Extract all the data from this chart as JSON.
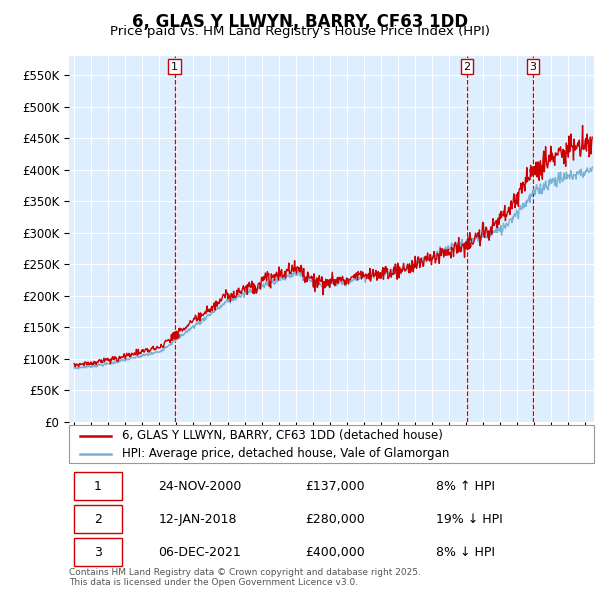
{
  "title": "6, GLAS Y LLWYN, BARRY, CF63 1DD",
  "subtitle": "Price paid vs. HM Land Registry's House Price Index (HPI)",
  "ylim": [
    0,
    580000
  ],
  "yticks": [
    0,
    50000,
    100000,
    150000,
    200000,
    250000,
    300000,
    350000,
    400000,
    450000,
    500000,
    550000
  ],
  "xlim_start": 1994.7,
  "xlim_end": 2025.5,
  "plot_bg_color": "#ddeeff",
  "grid_color": "#ffffff",
  "hpi_color": "#7ab0d4",
  "price_color": "#cc0000",
  "dashed_line_color": "#cc0000",
  "sale_dates": [
    2000.9,
    2018.04,
    2021.92
  ],
  "sale_prices": [
    137000,
    280000,
    400000
  ],
  "sale_labels": [
    "1",
    "2",
    "3"
  ],
  "legend_line1": "6, GLAS Y LLWYN, BARRY, CF63 1DD (detached house)",
  "legend_line2": "HPI: Average price, detached house, Vale of Glamorgan",
  "table_rows": [
    [
      "1",
      "24-NOV-2000",
      "£137,000",
      "8% ↑ HPI"
    ],
    [
      "2",
      "12-JAN-2018",
      "£280,000",
      "19% ↓ HPI"
    ],
    [
      "3",
      "06-DEC-2021",
      "£400,000",
      "8% ↓ HPI"
    ]
  ],
  "footnote": "Contains HM Land Registry data © Crown copyright and database right 2025.\nThis data is licensed under the Open Government Licence v3.0."
}
